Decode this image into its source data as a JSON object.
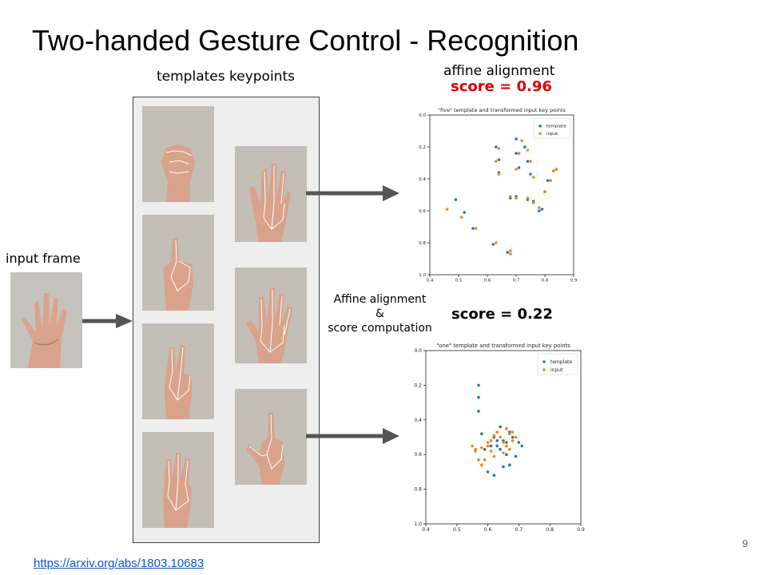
{
  "slide": {
    "title": "Two-handed Gesture Control - Recognition",
    "templates_caption": "templates keypoints",
    "affine_caption": "affine alignment",
    "score_top": "score = 0.96",
    "score_bottom": "score = 0.22",
    "input_caption": "input frame",
    "mid_label_line1": "Affine alignment",
    "mid_label_line2": "&",
    "mid_label_line3": "score computation",
    "page_number": "9",
    "link": "https://arxiv.org/abs/1803.10683"
  },
  "colors": {
    "score_highlight": "#e00000",
    "template": "#1f77b4",
    "input": "#ff7f0e",
    "link": "#1155cc"
  },
  "icons": [
    "hand-photo",
    "arrow-right"
  ],
  "chart_data": [
    {
      "type": "scatter",
      "title": "\"five\" template and transformed input key points",
      "xlim": [
        0.4,
        0.9
      ],
      "ylim": [
        1.0,
        0.0
      ],
      "xticks": [
        "0.4",
        "0.5",
        "0.6",
        "0.7",
        "0.8",
        "0.9"
      ],
      "yticks": [
        "0.0",
        "0.2",
        "0.4",
        "0.6",
        "0.8",
        "1.0"
      ],
      "legend_position": "top-right",
      "grid": false,
      "series": [
        {
          "name": "template",
          "x": [
            0.49,
            0.52,
            0.55,
            0.62,
            0.67,
            0.63,
            0.64,
            0.64,
            0.68,
            0.7,
            0.7,
            0.71,
            0.7,
            0.73,
            0.74,
            0.75,
            0.76,
            0.74,
            0.78,
            0.8,
            0.81,
            0.83,
            0.84,
            0.79
          ],
          "y": [
            0.53,
            0.61,
            0.71,
            0.81,
            0.86,
            0.2,
            0.28,
            0.36,
            0.52,
            0.15,
            0.24,
            0.33,
            0.51,
            0.2,
            0.29,
            0.37,
            0.54,
            0.53,
            0.6,
            0.48,
            0.41,
            0.35,
            0.34,
            0.59
          ]
        },
        {
          "name": "input",
          "x": [
            0.46,
            0.51,
            0.56,
            0.63,
            0.68,
            0.64,
            0.63,
            0.64,
            0.68,
            0.72,
            0.71,
            0.7,
            0.7,
            0.74,
            0.75,
            0.76,
            0.76,
            0.74,
            0.78,
            0.8,
            0.82,
            0.83,
            0.84,
            0.68
          ],
          "y": [
            0.59,
            0.64,
            0.71,
            0.8,
            0.85,
            0.21,
            0.29,
            0.37,
            0.51,
            0.16,
            0.24,
            0.34,
            0.52,
            0.22,
            0.29,
            0.39,
            0.55,
            0.52,
            0.58,
            0.48,
            0.41,
            0.35,
            0.34,
            0.87
          ]
        }
      ]
    },
    {
      "type": "scatter",
      "title": "\"one\" template and transformed input key points",
      "xlim": [
        0.4,
        0.9
      ],
      "ylim": [
        1.0,
        0.0
      ],
      "xticks": [
        "0.4",
        "0.5",
        "0.6",
        "0.7",
        "0.8",
        "0.9"
      ],
      "yticks": [
        "0.0",
        "0.2",
        "0.4",
        "0.6",
        "0.8",
        "1.0"
      ],
      "legend_position": "top-right",
      "grid": false,
      "series": [
        {
          "name": "template",
          "x": [
            0.57,
            0.57,
            0.57,
            0.58,
            0.59,
            0.6,
            0.62,
            0.63,
            0.64,
            0.64,
            0.65,
            0.66,
            0.66,
            0.67,
            0.68,
            0.69,
            0.7,
            0.71,
            0.66,
            0.62,
            0.61,
            0.63,
            0.65,
            0.67
          ],
          "y": [
            0.2,
            0.27,
            0.35,
            0.48,
            0.57,
            0.7,
            0.72,
            0.55,
            0.44,
            0.57,
            0.67,
            0.6,
            0.53,
            0.66,
            0.5,
            0.61,
            0.53,
            0.55,
            0.45,
            0.5,
            0.55,
            0.52,
            0.52,
            0.47
          ]
        },
        {
          "name": "input",
          "x": [
            0.55,
            0.56,
            0.57,
            0.58,
            0.59,
            0.56,
            0.58,
            0.6,
            0.61,
            0.62,
            0.63,
            0.64,
            0.65,
            0.66,
            0.67,
            0.68,
            0.69,
            0.65,
            0.66,
            0.67,
            0.61,
            0.62,
            0.68,
            0.6
          ],
          "y": [
            0.55,
            0.58,
            0.63,
            0.66,
            0.63,
            0.57,
            0.56,
            0.55,
            0.52,
            0.49,
            0.47,
            0.5,
            0.53,
            0.55,
            0.57,
            0.52,
            0.5,
            0.59,
            0.45,
            0.48,
            0.58,
            0.61,
            0.47,
            0.53
          ]
        }
      ]
    }
  ]
}
